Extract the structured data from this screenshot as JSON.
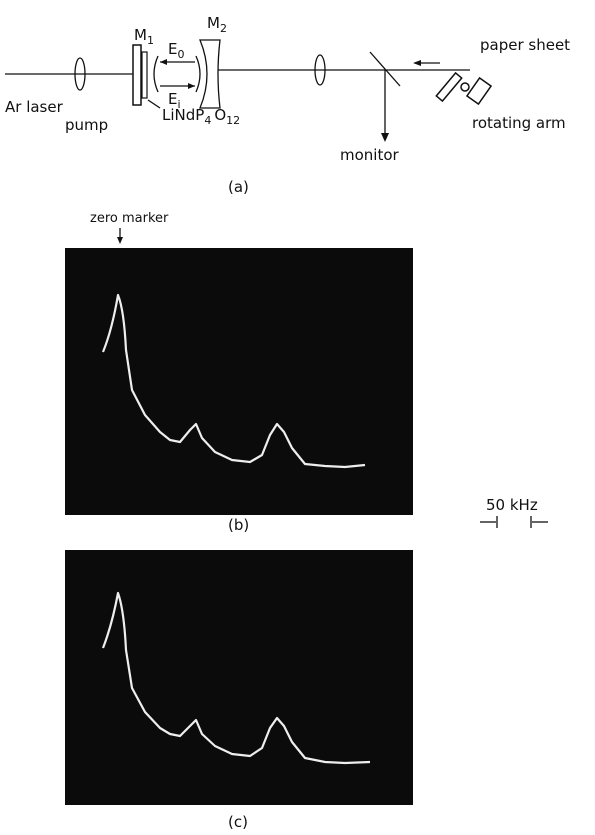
{
  "figure": {
    "setup": {
      "mirror_1": {
        "main": "M",
        "sub": "1"
      },
      "mirror_2": {
        "main": "M",
        "sub": "2"
      },
      "field_out": {
        "main": "E",
        "sub": "0"
      },
      "field_in": {
        "main": "E",
        "sub": "i"
      },
      "pump_line_1": "Ar laser",
      "pump_line_2": "pump",
      "crystal": [
        "LiNdP",
        "4",
        "O",
        "12"
      ],
      "paper_sheet": "paper sheet",
      "rotating_arm": "rotating arm",
      "monitor": "monitor",
      "caption": "(a)"
    },
    "zero_marker": "zero marker",
    "panel_b_caption": "(b)",
    "panel_c_caption": "(c)",
    "scale": "50 kHz"
  }
}
